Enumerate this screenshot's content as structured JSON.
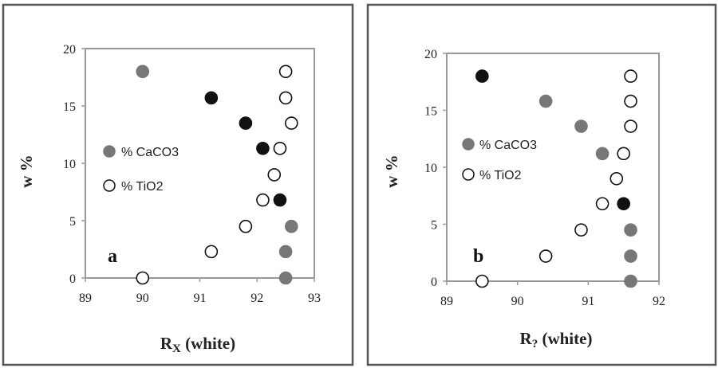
{
  "chart_data": [
    {
      "type": "scatter",
      "panel_label": "a",
      "xlabel_main": "R",
      "xlabel_sub": "X",
      "xlabel_rest": " (white)",
      "ylabel": "w %",
      "xlim": [
        89,
        93
      ],
      "ylim": [
        0,
        20
      ],
      "x_ticks": [
        "89",
        "90",
        "91",
        "92",
        "93"
      ],
      "y_ticks": [
        "0",
        "5",
        "10",
        "15",
        "20"
      ],
      "legend_position": "center-left",
      "series": [
        {
          "name": "% CaCO3",
          "color": "#777777",
          "dark_color": "#111111",
          "points": [
            {
              "x": 90.0,
              "y": 18.0,
              "shade": "light"
            },
            {
              "x": 91.2,
              "y": 15.7,
              "shade": "dark"
            },
            {
              "x": 91.8,
              "y": 13.5,
              "shade": "dark"
            },
            {
              "x": 92.1,
              "y": 11.3,
              "shade": "dark"
            },
            {
              "x": 92.4,
              "y": 6.8,
              "shade": "dark"
            },
            {
              "x": 92.6,
              "y": 4.5,
              "shade": "light"
            },
            {
              "x": 92.5,
              "y": 2.3,
              "shade": "light"
            },
            {
              "x": 92.5,
              "y": 0.0,
              "shade": "light"
            }
          ]
        },
        {
          "name": "% TiO2",
          "color": "#ffffff",
          "points": [
            {
              "x": 90.0,
              "y": 0.0
            },
            {
              "x": 91.2,
              "y": 2.3
            },
            {
              "x": 91.8,
              "y": 4.5
            },
            {
              "x": 92.1,
              "y": 6.8
            },
            {
              "x": 92.3,
              "y": 9.0
            },
            {
              "x": 92.4,
              "y": 11.3
            },
            {
              "x": 92.6,
              "y": 13.5
            },
            {
              "x": 92.5,
              "y": 15.7
            },
            {
              "x": 92.5,
              "y": 18.0
            }
          ]
        }
      ]
    },
    {
      "type": "scatter",
      "panel_label": "b",
      "xlabel_main": "R",
      "xlabel_sub": "?",
      "xlabel_rest": " (white)",
      "ylabel": "w %",
      "xlim": [
        89,
        92
      ],
      "ylim": [
        0,
        20
      ],
      "x_ticks": [
        "89",
        "90",
        "91",
        "92"
      ],
      "y_ticks": [
        "0",
        "5",
        "10",
        "15",
        "20"
      ],
      "legend_position": "center-left",
      "series": [
        {
          "name": "% CaCO3",
          "color": "#777777",
          "dark_color": "#111111",
          "points": [
            {
              "x": 89.5,
              "y": 18.0,
              "shade": "dark"
            },
            {
              "x": 90.4,
              "y": 15.8,
              "shade": "light"
            },
            {
              "x": 90.9,
              "y": 13.6,
              "shade": "light"
            },
            {
              "x": 91.2,
              "y": 11.2,
              "shade": "light"
            },
            {
              "x": 91.5,
              "y": 6.8,
              "shade": "dark"
            },
            {
              "x": 91.6,
              "y": 4.5,
              "shade": "light"
            },
            {
              "x": 91.6,
              "y": 2.2,
              "shade": "light"
            },
            {
              "x": 91.6,
              "y": 0.0,
              "shade": "light"
            }
          ]
        },
        {
          "name": "% TiO2",
          "color": "#ffffff",
          "points": [
            {
              "x": 89.5,
              "y": 0.0
            },
            {
              "x": 90.4,
              "y": 2.2
            },
            {
              "x": 90.9,
              "y": 4.5
            },
            {
              "x": 91.2,
              "y": 6.8
            },
            {
              "x": 91.4,
              "y": 9.0
            },
            {
              "x": 91.5,
              "y": 11.2
            },
            {
              "x": 91.6,
              "y": 13.6
            },
            {
              "x": 91.6,
              "y": 15.8
            },
            {
              "x": 91.6,
              "y": 18.0
            }
          ]
        }
      ]
    }
  ]
}
